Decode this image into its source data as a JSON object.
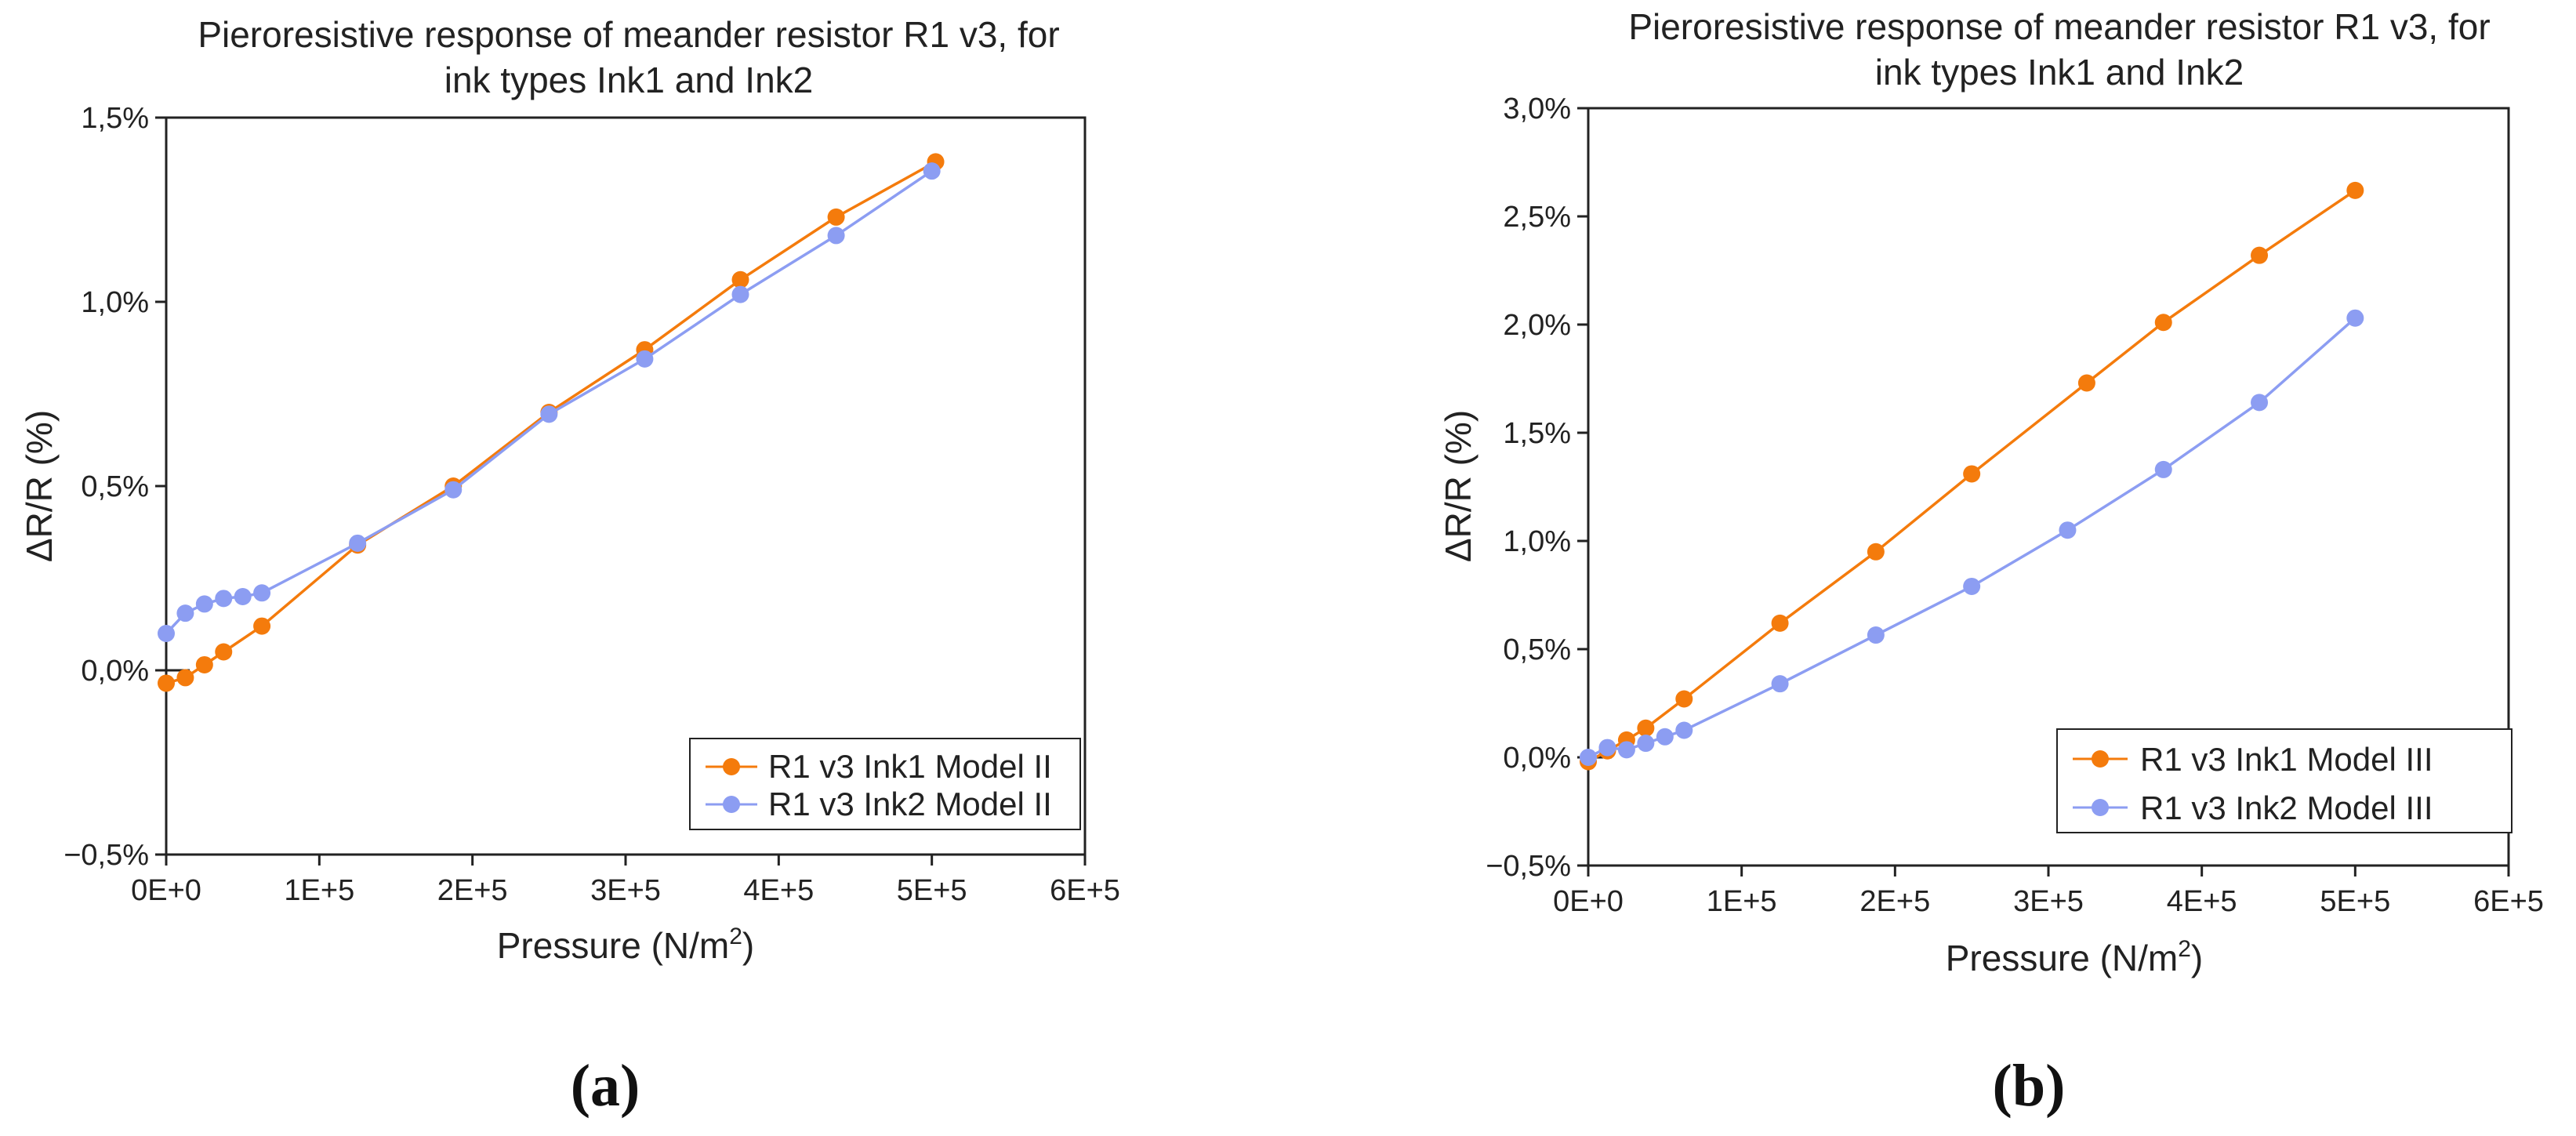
{
  "colors": {
    "ink1": "#F47B0C",
    "ink2": "#8C9DF2",
    "axis": "#222222"
  },
  "panel_labels": [
    "(a)",
    "(b)"
  ],
  "chart_data": [
    {
      "type": "line",
      "title": [
        "Pieroresistive response of meander resistor R1 v3, for",
        "ink types Ink1 and Ink2"
      ],
      "xlabel": "Pressure (N/m",
      "xlabel_sup": "2",
      "xlabel_end": ")",
      "ylabel": "ΔR/R (%)",
      "xlim": [
        0,
        600000
      ],
      "ylim": [
        -0.5,
        1.5
      ],
      "xticks": [
        0,
        100000,
        200000,
        300000,
        400000,
        500000,
        600000
      ],
      "xtick_labels": [
        "0E+0",
        "1E+5",
        "2E+5",
        "3E+5",
        "4E+5",
        "5E+5",
        "6E+5"
      ],
      "yticks": [
        -0.5,
        0,
        0.5,
        1.0,
        1.5
      ],
      "ytick_labels": [
        "−0,5%",
        "0,0%",
        "0,5%",
        "1,0%",
        "1,5%"
      ],
      "legend_position": "bottom-right",
      "series": [
        {
          "name": "R1 v3 Ink1 Model II",
          "color": "#F47B0C",
          "x": [
            0,
            12500,
            25000,
            37500,
            62500,
            125000,
            187500,
            250000,
            312500,
            375000,
            437500,
            502500
          ],
          "y": [
            -0.035,
            -0.02,
            0.015,
            0.05,
            0.12,
            0.34,
            0.5,
            0.7,
            0.87,
            1.06,
            1.23,
            1.38
          ]
        },
        {
          "name": "R1 v3 Ink2 Model II",
          "color": "#8C9DF2",
          "x": [
            0,
            12500,
            25000,
            37500,
            50000,
            62500,
            125000,
            187500,
            250000,
            312500,
            375000,
            437500,
            500000
          ],
          "y": [
            0.1,
            0.155,
            0.18,
            0.195,
            0.2,
            0.21,
            0.345,
            0.49,
            0.695,
            0.845,
            1.02,
            1.18,
            1.355
          ]
        }
      ]
    },
    {
      "type": "line",
      "title": [
        "Pieroresistive response of meander resistor R1 v3, for",
        "ink types Ink1 and Ink2"
      ],
      "xlabel": "Pressure (N/m",
      "xlabel_sup": "2",
      "xlabel_end": ")",
      "ylabel": "ΔR/R (%)",
      "xlim": [
        0,
        600000
      ],
      "ylim": [
        -0.5,
        3.0
      ],
      "xticks": [
        0,
        100000,
        200000,
        300000,
        400000,
        500000,
        600000
      ],
      "xtick_labels": [
        "0E+0",
        "1E+5",
        "2E+5",
        "3E+5",
        "4E+5",
        "5E+5",
        "6E+5"
      ],
      "yticks": [
        -0.5,
        0,
        0.5,
        1.0,
        1.5,
        2.0,
        2.5,
        3.0
      ],
      "ytick_labels": [
        "−0,5%",
        "0,0%",
        "0,5%",
        "1,0%",
        "1,5%",
        "2,0%",
        "2,5%",
        "3,0%"
      ],
      "legend_position": "bottom-right",
      "series": [
        {
          "name": "R1 v3 Ink1 Model III",
          "color": "#F47B0C",
          "x": [
            0,
            12500,
            25000,
            37500,
            62500,
            125000,
            187500,
            250000,
            325000,
            375000,
            437500,
            500000
          ],
          "y": [
            -0.02,
            0.03,
            0.08,
            0.135,
            0.27,
            0.62,
            0.95,
            1.31,
            1.73,
            2.01,
            2.32,
            2.62
          ]
        },
        {
          "name": "R1 v3 Ink2 Model III",
          "color": "#8C9DF2",
          "x": [
            0,
            12500,
            25000,
            37500,
            50000,
            62500,
            125000,
            187500,
            250000,
            312500,
            375000,
            437500,
            500000
          ],
          "y": [
            0.0,
            0.045,
            0.035,
            0.065,
            0.095,
            0.125,
            0.34,
            0.565,
            0.79,
            1.05,
            1.33,
            1.64,
            2.03
          ]
        }
      ]
    }
  ]
}
